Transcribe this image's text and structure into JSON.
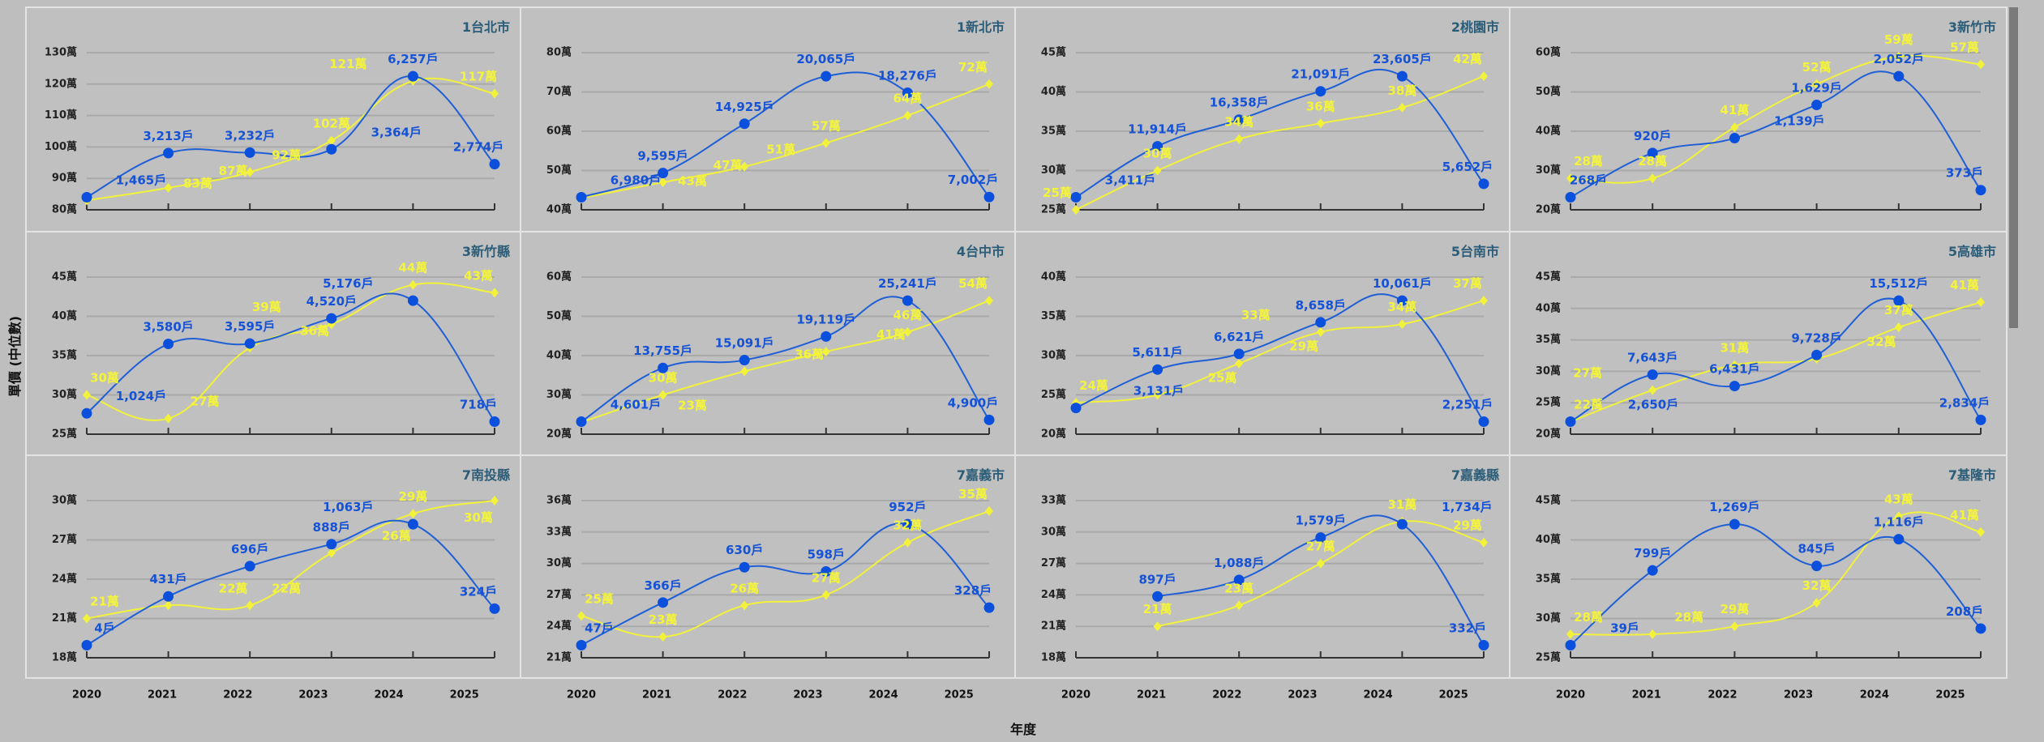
{
  "axis": {
    "x_label": "年度",
    "y_label": "單價 (中位數)"
  },
  "x_tick_labels": [
    "2020",
    "2021",
    "2022",
    "2023",
    "2024",
    "2025"
  ],
  "units": {
    "price_suffix": "萬",
    "count_suffix": "戶"
  },
  "colors": {
    "price_line": "#f2f23a",
    "count_line": "#1f5fd6",
    "count_marker": "#0a50dc",
    "title": "#2b5c78",
    "background": "#c0c0c0"
  },
  "chart_data": [
    {
      "type": "line",
      "title": "1台北市",
      "categories": [
        "2020",
        "2021",
        "2022",
        "2023",
        "2024",
        "2025"
      ],
      "ylim": [
        80,
        130
      ],
      "yticks": [
        80,
        90,
        100,
        110,
        120,
        130
      ],
      "series": [
        {
          "values": [
            83,
            87,
            92,
            102,
            121,
            117
          ],
          "axis": "left",
          "marker": "diamond"
        },
        {
          "values": [
            1465,
            3213,
            3232,
            3364,
            6257,
            2774
          ],
          "axis": "hidden-right",
          "marker": "circle"
        }
      ]
    },
    {
      "type": "line",
      "title": "1新北市",
      "categories": [
        "2020",
        "2021",
        "2022",
        "2023",
        "2024",
        "2025"
      ],
      "ylim": [
        40,
        80
      ],
      "yticks": [
        40,
        50,
        60,
        70,
        80
      ],
      "series": [
        {
          "values": [
            43,
            47,
            51,
            57,
            64,
            72
          ],
          "axis": "left",
          "marker": "diamond"
        },
        {
          "values": [
            6980,
            9595,
            14925,
            20065,
            18276,
            7002
          ],
          "axis": "hidden-right",
          "marker": "circle"
        }
      ]
    },
    {
      "type": "line",
      "title": "2桃園市",
      "categories": [
        "2020",
        "2021",
        "2022",
        "2023",
        "2024",
        "2025"
      ],
      "ylim": [
        25,
        45
      ],
      "yticks": [
        25,
        30,
        35,
        40,
        45
      ],
      "series": [
        {
          "values": [
            25,
            30,
            34,
            36,
            38,
            42
          ],
          "axis": "left",
          "marker": "diamond"
        },
        {
          "values": [
            3411,
            11914,
            16358,
            21091,
            23605,
            5652
          ],
          "axis": "hidden-right",
          "marker": "circle"
        }
      ]
    },
    {
      "type": "line",
      "title": "3新竹市",
      "categories": [
        "2020",
        "2021",
        "2022",
        "2023",
        "2024",
        "2025"
      ],
      "ylim": [
        20,
        60
      ],
      "yticks": [
        20,
        30,
        40,
        50,
        60
      ],
      "series": [
        {
          "values": [
            28,
            28,
            41,
            52,
            59,
            57
          ],
          "axis": "left",
          "marker": "diamond"
        },
        {
          "values": [
            268,
            920,
            1139,
            1629,
            2052,
            373
          ],
          "axis": "hidden-right",
          "marker": "circle"
        }
      ]
    },
    {
      "type": "line",
      "title": "3新竹縣",
      "categories": [
        "2020",
        "2021",
        "2022",
        "2023",
        "2024",
        "2025"
      ],
      "ylim": [
        25,
        45
      ],
      "yticks": [
        25,
        30,
        35,
        40,
        45
      ],
      "series": [
        {
          "values": [
            30,
            27,
            36,
            39,
            44,
            43
          ],
          "axis": "left",
          "marker": "diamond"
        },
        {
          "values": [
            1024,
            3580,
            3595,
            4520,
            5176,
            718
          ],
          "axis": "hidden-right",
          "marker": "circle"
        }
      ]
    },
    {
      "type": "line",
      "title": "4台中市",
      "categories": [
        "2020",
        "2021",
        "2022",
        "2023",
        "2024",
        "2025"
      ],
      "ylim": [
        20,
        60
      ],
      "yticks": [
        20,
        30,
        40,
        50,
        60
      ],
      "series": [
        {
          "values": [
            23,
            30,
            36,
            41,
            46,
            54
          ],
          "axis": "left",
          "marker": "diamond"
        },
        {
          "values": [
            4601,
            13755,
            15091,
            19119,
            25241,
            4900
          ],
          "axis": "hidden-right",
          "marker": "circle"
        }
      ]
    },
    {
      "type": "line",
      "title": "5台南市",
      "categories": [
        "2020",
        "2021",
        "2022",
        "2023",
        "2024",
        "2025"
      ],
      "ylim": [
        20,
        40
      ],
      "yticks": [
        20,
        25,
        30,
        35,
        40
      ],
      "series": [
        {
          "values": [
            24,
            25,
            29,
            33,
            34,
            37
          ],
          "axis": "left",
          "marker": "diamond"
        },
        {
          "values": [
            3131,
            5611,
            6621,
            8658,
            10061,
            2251
          ],
          "axis": "hidden-right",
          "marker": "circle"
        }
      ]
    },
    {
      "type": "line",
      "title": "5高雄市",
      "categories": [
        "2020",
        "2021",
        "2022",
        "2023",
        "2024",
        "2025"
      ],
      "ylim": [
        20,
        45
      ],
      "yticks": [
        20,
        25,
        30,
        35,
        40,
        45
      ],
      "series": [
        {
          "values": [
            22,
            27,
            31,
            32,
            37,
            41
          ],
          "axis": "left",
          "marker": "diamond"
        },
        {
          "values": [
            2650,
            7643,
            6431,
            9728,
            15512,
            2834
          ],
          "axis": "hidden-right",
          "marker": "circle"
        }
      ]
    },
    {
      "type": "line",
      "title": "7南投縣",
      "categories": [
        "2020",
        "2021",
        "2022",
        "2023",
        "2024",
        "2025"
      ],
      "ylim": [
        18,
        30
      ],
      "yticks": [
        18,
        21,
        24,
        27,
        30
      ],
      "series": [
        {
          "values": [
            21,
            22,
            22,
            26,
            29,
            30
          ],
          "axis": "left",
          "marker": "diamond"
        },
        {
          "values": [
            4,
            431,
            696,
            888,
            1063,
            324
          ],
          "axis": "hidden-right",
          "marker": "circle"
        }
      ]
    },
    {
      "type": "line",
      "title": "7嘉義市",
      "categories": [
        "2020",
        "2021",
        "2022",
        "2023",
        "2024",
        "2025"
      ],
      "ylim": [
        21,
        36
      ],
      "yticks": [
        21,
        24,
        27,
        30,
        33,
        36
      ],
      "series": [
        {
          "values": [
            25,
            23,
            26,
            27,
            32,
            35
          ],
          "axis": "left",
          "marker": "diamond"
        },
        {
          "values": [
            47,
            366,
            630,
            598,
            952,
            328
          ],
          "axis": "hidden-right",
          "marker": "circle"
        }
      ]
    },
    {
      "type": "line",
      "title": "7嘉義縣",
      "categories": [
        "2020",
        "2021",
        "2022",
        "2023",
        "2024",
        "2025"
      ],
      "ylim": [
        18,
        33
      ],
      "yticks": [
        18,
        21,
        24,
        27,
        30,
        33
      ],
      "series": [
        {
          "values": [
            null,
            21,
            23,
            27,
            31,
            29
          ],
          "axis": "left",
          "marker": "diamond"
        },
        {
          "values": [
            null,
            897,
            1088,
            1579,
            1734,
            332
          ],
          "axis": "hidden-right",
          "marker": "circle"
        }
      ]
    },
    {
      "type": "line",
      "title": "7基隆市",
      "categories": [
        "2020",
        "2021",
        "2022",
        "2023",
        "2024",
        "2025"
      ],
      "ylim": [
        25,
        45
      ],
      "yticks": [
        25,
        30,
        35,
        40,
        45
      ],
      "series": [
        {
          "values": [
            28,
            28,
            29,
            32,
            43,
            41
          ],
          "axis": "left",
          "marker": "diamond"
        },
        {
          "values": [
            39,
            799,
            1269,
            845,
            1116,
            208
          ],
          "axis": "hidden-right",
          "marker": "circle"
        }
      ]
    }
  ]
}
